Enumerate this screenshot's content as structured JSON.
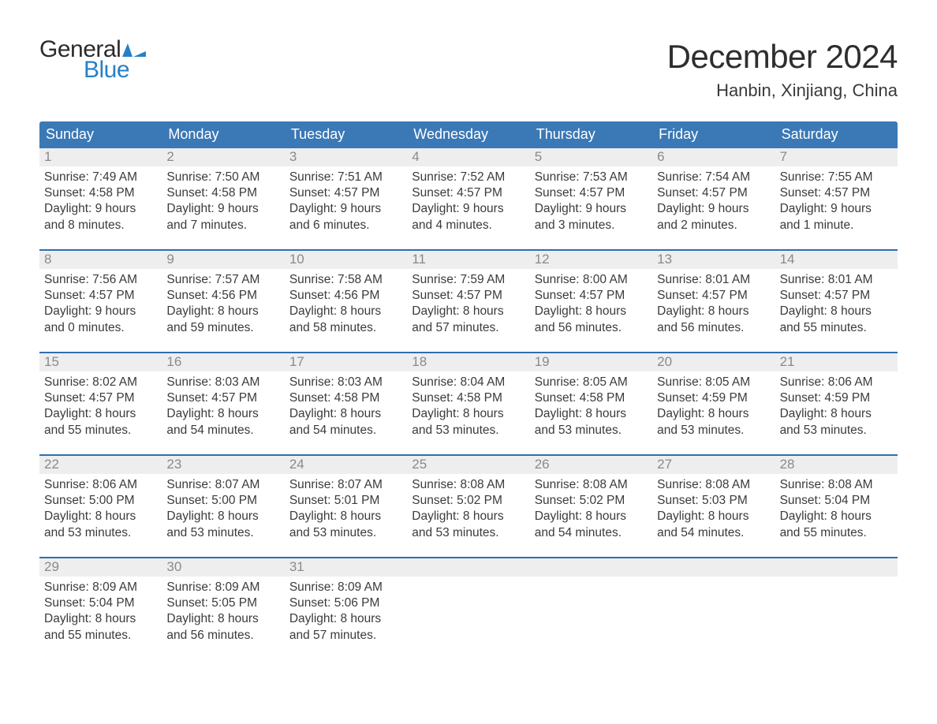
{
  "logo": {
    "line1": "General",
    "line2": "Blue",
    "icon_color": "#2780c7"
  },
  "title": "December 2024",
  "location": "Hanbin, Xinjiang, China",
  "colors": {
    "header_bg": "#3b78b6",
    "row_separator": "#2e6fb0",
    "daynum_bg": "#eeeeee",
    "daynum_text": "#8a8a8a",
    "page_bg": "#ffffff",
    "body_text": "#3b3b3b"
  },
  "weekdays": [
    "Sunday",
    "Monday",
    "Tuesday",
    "Wednesday",
    "Thursday",
    "Friday",
    "Saturday"
  ],
  "weeks": [
    [
      {
        "n": 1,
        "sunrise": "7:49 AM",
        "sunset": "4:58 PM",
        "dl1": "Daylight: 9 hours",
        "dl2": "and 8 minutes."
      },
      {
        "n": 2,
        "sunrise": "7:50 AM",
        "sunset": "4:58 PM",
        "dl1": "Daylight: 9 hours",
        "dl2": "and 7 minutes."
      },
      {
        "n": 3,
        "sunrise": "7:51 AM",
        "sunset": "4:57 PM",
        "dl1": "Daylight: 9 hours",
        "dl2": "and 6 minutes."
      },
      {
        "n": 4,
        "sunrise": "7:52 AM",
        "sunset": "4:57 PM",
        "dl1": "Daylight: 9 hours",
        "dl2": "and 4 minutes."
      },
      {
        "n": 5,
        "sunrise": "7:53 AM",
        "sunset": "4:57 PM",
        "dl1": "Daylight: 9 hours",
        "dl2": "and 3 minutes."
      },
      {
        "n": 6,
        "sunrise": "7:54 AM",
        "sunset": "4:57 PM",
        "dl1": "Daylight: 9 hours",
        "dl2": "and 2 minutes."
      },
      {
        "n": 7,
        "sunrise": "7:55 AM",
        "sunset": "4:57 PM",
        "dl1": "Daylight: 9 hours",
        "dl2": "and 1 minute."
      }
    ],
    [
      {
        "n": 8,
        "sunrise": "7:56 AM",
        "sunset": "4:57 PM",
        "dl1": "Daylight: 9 hours",
        "dl2": "and 0 minutes."
      },
      {
        "n": 9,
        "sunrise": "7:57 AM",
        "sunset": "4:56 PM",
        "dl1": "Daylight: 8 hours",
        "dl2": "and 59 minutes."
      },
      {
        "n": 10,
        "sunrise": "7:58 AM",
        "sunset": "4:56 PM",
        "dl1": "Daylight: 8 hours",
        "dl2": "and 58 minutes."
      },
      {
        "n": 11,
        "sunrise": "7:59 AM",
        "sunset": "4:57 PM",
        "dl1": "Daylight: 8 hours",
        "dl2": "and 57 minutes."
      },
      {
        "n": 12,
        "sunrise": "8:00 AM",
        "sunset": "4:57 PM",
        "dl1": "Daylight: 8 hours",
        "dl2": "and 56 minutes."
      },
      {
        "n": 13,
        "sunrise": "8:01 AM",
        "sunset": "4:57 PM",
        "dl1": "Daylight: 8 hours",
        "dl2": "and 56 minutes."
      },
      {
        "n": 14,
        "sunrise": "8:01 AM",
        "sunset": "4:57 PM",
        "dl1": "Daylight: 8 hours",
        "dl2": "and 55 minutes."
      }
    ],
    [
      {
        "n": 15,
        "sunrise": "8:02 AM",
        "sunset": "4:57 PM",
        "dl1": "Daylight: 8 hours",
        "dl2": "and 55 minutes."
      },
      {
        "n": 16,
        "sunrise": "8:03 AM",
        "sunset": "4:57 PM",
        "dl1": "Daylight: 8 hours",
        "dl2": "and 54 minutes."
      },
      {
        "n": 17,
        "sunrise": "8:03 AM",
        "sunset": "4:58 PM",
        "dl1": "Daylight: 8 hours",
        "dl2": "and 54 minutes."
      },
      {
        "n": 18,
        "sunrise": "8:04 AM",
        "sunset": "4:58 PM",
        "dl1": "Daylight: 8 hours",
        "dl2": "and 53 minutes."
      },
      {
        "n": 19,
        "sunrise": "8:05 AM",
        "sunset": "4:58 PM",
        "dl1": "Daylight: 8 hours",
        "dl2": "and 53 minutes."
      },
      {
        "n": 20,
        "sunrise": "8:05 AM",
        "sunset": "4:59 PM",
        "dl1": "Daylight: 8 hours",
        "dl2": "and 53 minutes."
      },
      {
        "n": 21,
        "sunrise": "8:06 AM",
        "sunset": "4:59 PM",
        "dl1": "Daylight: 8 hours",
        "dl2": "and 53 minutes."
      }
    ],
    [
      {
        "n": 22,
        "sunrise": "8:06 AM",
        "sunset": "5:00 PM",
        "dl1": "Daylight: 8 hours",
        "dl2": "and 53 minutes."
      },
      {
        "n": 23,
        "sunrise": "8:07 AM",
        "sunset": "5:00 PM",
        "dl1": "Daylight: 8 hours",
        "dl2": "and 53 minutes."
      },
      {
        "n": 24,
        "sunrise": "8:07 AM",
        "sunset": "5:01 PM",
        "dl1": "Daylight: 8 hours",
        "dl2": "and 53 minutes."
      },
      {
        "n": 25,
        "sunrise": "8:08 AM",
        "sunset": "5:02 PM",
        "dl1": "Daylight: 8 hours",
        "dl2": "and 53 minutes."
      },
      {
        "n": 26,
        "sunrise": "8:08 AM",
        "sunset": "5:02 PM",
        "dl1": "Daylight: 8 hours",
        "dl2": "and 54 minutes."
      },
      {
        "n": 27,
        "sunrise": "8:08 AM",
        "sunset": "5:03 PM",
        "dl1": "Daylight: 8 hours",
        "dl2": "and 54 minutes."
      },
      {
        "n": 28,
        "sunrise": "8:08 AM",
        "sunset": "5:04 PM",
        "dl1": "Daylight: 8 hours",
        "dl2": "and 55 minutes."
      }
    ],
    [
      {
        "n": 29,
        "sunrise": "8:09 AM",
        "sunset": "5:04 PM",
        "dl1": "Daylight: 8 hours",
        "dl2": "and 55 minutes."
      },
      {
        "n": 30,
        "sunrise": "8:09 AM",
        "sunset": "5:05 PM",
        "dl1": "Daylight: 8 hours",
        "dl2": "and 56 minutes."
      },
      {
        "n": 31,
        "sunrise": "8:09 AM",
        "sunset": "5:06 PM",
        "dl1": "Daylight: 8 hours",
        "dl2": "and 57 minutes."
      },
      {
        "empty": true
      },
      {
        "empty": true
      },
      {
        "empty": true
      },
      {
        "empty": true
      }
    ]
  ],
  "labels": {
    "sunrise": "Sunrise:",
    "sunset": "Sunset:"
  }
}
